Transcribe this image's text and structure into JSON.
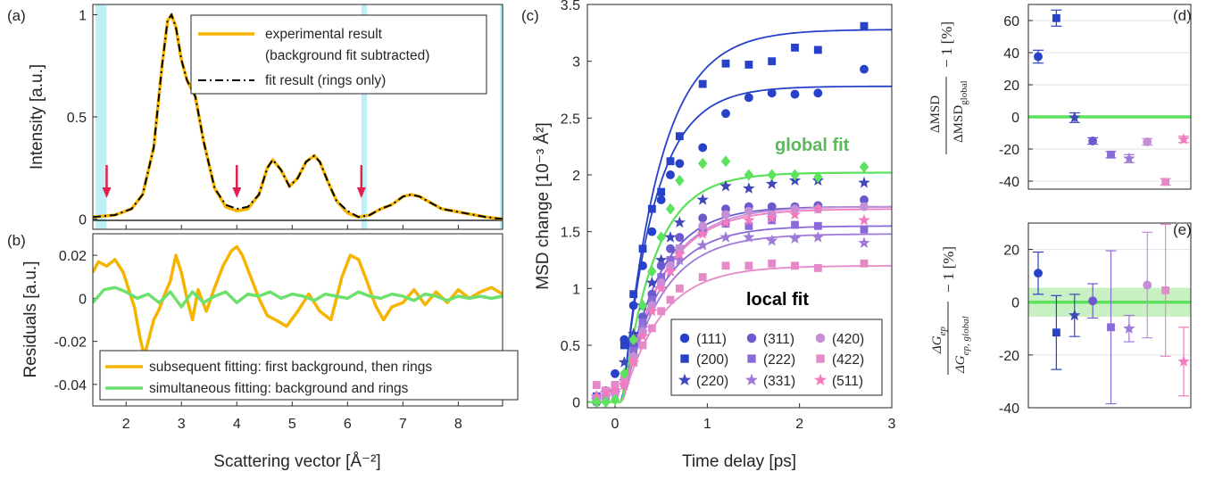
{
  "panels": {
    "a": "(a)",
    "b": "(b)",
    "c": "(c)",
    "d": "(d)",
    "e": "(e)"
  },
  "chart_data": [
    {
      "id": "a",
      "type": "line",
      "ylabel": "Intensity [a.u.]",
      "xlim": [
        1.4,
        8.8
      ],
      "ylim": [
        -0.05,
        1.05
      ],
      "yticks": [
        0,
        0.5,
        1
      ],
      "ytick_labels": [
        "0",
        "0.5",
        "1"
      ],
      "shaded_regions": [
        [
          1.45,
          1.65
        ],
        [
          6.25,
          6.35
        ],
        [
          8.75,
          8.8
        ]
      ],
      "arrows_at_x": [
        1.65,
        4.0,
        6.25
      ],
      "series": [
        {
          "name": "experimental result",
          "name_line2": "(background fit subtracted)",
          "color": "#f4b400",
          "x": [
            1.4,
            1.8,
            2.1,
            2.3,
            2.5,
            2.65,
            2.75,
            2.82,
            2.9,
            3.0,
            3.1,
            3.25,
            3.4,
            3.6,
            3.8,
            4.0,
            4.2,
            4.4,
            4.55,
            4.65,
            4.8,
            4.95,
            5.1,
            5.25,
            5.4,
            5.5,
            5.65,
            5.8,
            6.0,
            6.2,
            6.4,
            6.6,
            6.8,
            7.0,
            7.15,
            7.3,
            7.5,
            7.7,
            7.9,
            8.1,
            8.3,
            8.5,
            8.8
          ],
          "y": [
            0.01,
            0.02,
            0.05,
            0.12,
            0.35,
            0.75,
            0.97,
            1.0,
            0.94,
            0.78,
            0.68,
            0.6,
            0.38,
            0.15,
            0.06,
            0.04,
            0.05,
            0.12,
            0.25,
            0.29,
            0.24,
            0.16,
            0.2,
            0.28,
            0.31,
            0.28,
            0.18,
            0.09,
            0.03,
            0.01,
            0.02,
            0.05,
            0.07,
            0.11,
            0.12,
            0.11,
            0.08,
            0.05,
            0.04,
            0.03,
            0.02,
            0.01,
            0.0
          ]
        },
        {
          "name": "fit result (rings only)",
          "color": "#000000",
          "dash": true,
          "x": [
            1.4,
            1.8,
            2.1,
            2.3,
            2.5,
            2.65,
            2.75,
            2.82,
            2.9,
            3.0,
            3.1,
            3.25,
            3.4,
            3.6,
            3.8,
            4.0,
            4.2,
            4.4,
            4.55,
            4.65,
            4.8,
            4.95,
            5.1,
            5.25,
            5.4,
            5.5,
            5.65,
            5.8,
            6.0,
            6.2,
            6.4,
            6.6,
            6.8,
            7.0,
            7.15,
            7.3,
            7.5,
            7.7,
            7.9,
            8.1,
            8.3,
            8.5,
            8.8
          ],
          "y": [
            0.01,
            0.02,
            0.05,
            0.12,
            0.35,
            0.75,
            0.97,
            1.0,
            0.94,
            0.78,
            0.68,
            0.6,
            0.38,
            0.15,
            0.07,
            0.05,
            0.06,
            0.12,
            0.25,
            0.29,
            0.24,
            0.16,
            0.2,
            0.28,
            0.31,
            0.28,
            0.18,
            0.09,
            0.04,
            0.01,
            0.02,
            0.05,
            0.07,
            0.11,
            0.12,
            0.11,
            0.08,
            0.05,
            0.04,
            0.03,
            0.02,
            0.01,
            0.0
          ]
        }
      ]
    },
    {
      "id": "b",
      "type": "line",
      "xlabel": "Scattering vector [Å⁻²]",
      "ylabel": "Residuals [a.u.]",
      "xlim": [
        1.4,
        8.8
      ],
      "ylim": [
        -0.05,
        0.03
      ],
      "xticks": [
        2,
        3,
        4,
        5,
        6,
        7,
        8
      ],
      "yticks": [
        -0.04,
        -0.02,
        0,
        0.02
      ],
      "ytick_labels": [
        "-0.04",
        "-0.02",
        "0",
        "0.02"
      ],
      "series": [
        {
          "name": "subsequent fitting: first background, then rings",
          "color": "#f4b400",
          "x": [
            1.4,
            1.5,
            1.65,
            1.8,
            1.95,
            2.05,
            2.15,
            2.25,
            2.33,
            2.4,
            2.5,
            2.6,
            2.7,
            2.8,
            2.9,
            3.0,
            3.1,
            3.2,
            3.3,
            3.45,
            3.6,
            3.75,
            3.9,
            4.0,
            4.1,
            4.25,
            4.4,
            4.55,
            4.7,
            4.9,
            5.1,
            5.3,
            5.5,
            5.7,
            5.9,
            6.05,
            6.2,
            6.35,
            6.5,
            6.65,
            6.8,
            7.0,
            7.2,
            7.4,
            7.6,
            7.8,
            8.0,
            8.2,
            8.4,
            8.6,
            8.8
          ],
          "y": [
            0.012,
            0.017,
            0.015,
            0.018,
            0.012,
            0.004,
            -0.004,
            -0.018,
            -0.027,
            -0.02,
            -0.01,
            -0.005,
            0.002,
            0.008,
            0.02,
            0.012,
            0.0,
            -0.01,
            0.004,
            -0.006,
            0.005,
            0.015,
            0.022,
            0.024,
            0.02,
            0.01,
            0.0,
            -0.008,
            -0.01,
            -0.013,
            -0.006,
            0.002,
            -0.006,
            -0.01,
            0.01,
            0.02,
            0.018,
            0.008,
            -0.003,
            -0.01,
            -0.004,
            -0.002,
            0.004,
            -0.003,
            0.003,
            -0.002,
            0.004,
            0.0,
            0.003,
            0.005,
            0.002
          ]
        },
        {
          "name": "simultaneous fitting: background and rings",
          "color": "#6ee06e",
          "x": [
            1.4,
            1.6,
            1.8,
            2.0,
            2.2,
            2.4,
            2.6,
            2.8,
            3.0,
            3.2,
            3.4,
            3.6,
            3.8,
            4.0,
            4.2,
            4.4,
            4.6,
            4.8,
            5.0,
            5.2,
            5.4,
            5.6,
            5.8,
            6.0,
            6.2,
            6.4,
            6.6,
            6.8,
            7.0,
            7.2,
            7.4,
            7.6,
            7.8,
            8.0,
            8.2,
            8.4,
            8.6,
            8.8
          ],
          "y": [
            -0.002,
            0.004,
            0.005,
            0.003,
            0.0,
            0.002,
            -0.002,
            0.003,
            -0.004,
            0.003,
            -0.002,
            0.001,
            0.003,
            -0.002,
            0.002,
            0.001,
            0.003,
            0.0,
            0.002,
            0.001,
            -0.001,
            0.002,
            0.001,
            0.0,
            0.003,
            0.001,
            0.0,
            0.002,
            0.001,
            -0.001,
            0.002,
            0.001,
            -0.001,
            0.001,
            0.0,
            0.001,
            0.0,
            0.001
          ]
        }
      ]
    },
    {
      "id": "c",
      "type": "scatter",
      "xlabel": "Time delay [ps]",
      "ylabel": "MSD change [10⁻³ Å²]",
      "xlim": [
        -0.3,
        3
      ],
      "ylim": [
        -0.05,
        3.5
      ],
      "xticks": [
        0,
        1,
        2,
        3
      ],
      "yticks": [
        0,
        0.5,
        1,
        1.5,
        2,
        2.5,
        3,
        3.5
      ],
      "ytick_labels": [
        "0",
        "0.5",
        "1",
        "1.5",
        "2",
        "2.5",
        "3",
        "3.5"
      ],
      "annotations": [
        {
          "text": "global fit",
          "color": "#5cb85c"
        },
        {
          "text": "local fit",
          "color": "#000000"
        }
      ],
      "t_values": [
        -0.2,
        -0.1,
        0,
        0.1,
        0.2,
        0.3,
        0.4,
        0.5,
        0.6,
        0.7,
        0.95,
        1.2,
        1.45,
        1.7,
        1.95,
        2.2,
        2.7
      ],
      "series": [
        {
          "name": "(111)",
          "marker": "circle",
          "color": "#2742c8",
          "amp": 2.78,
          "tau": 0.35,
          "t0": 0.08,
          "values": [
            0.0,
            0.1,
            0.25,
            0.55,
            0.85,
            1.2,
            1.5,
            1.78,
            2.0,
            2.1,
            2.24,
            2.54,
            2.68,
            2.72,
            2.71,
            2.72,
            2.93
          ]
        },
        {
          "name": "(200)",
          "marker": "square",
          "color": "#2742c8",
          "amp": 3.28,
          "tau": 0.4,
          "t0": 0.08,
          "values": [
            0.05,
            0.1,
            0.15,
            0.5,
            0.95,
            1.35,
            1.7,
            1.85,
            2.12,
            2.34,
            2.8,
            2.98,
            2.97,
            3.0,
            3.12,
            3.1,
            3.31
          ]
        },
        {
          "name": "(220)",
          "marker": "star",
          "color": "#3f48b8",
          "amp": 2.02,
          "tau": 0.35,
          "t0": 0.08,
          "values": [
            0.05,
            0.08,
            0.1,
            0.35,
            0.6,
            0.85,
            1.05,
            1.25,
            1.45,
            1.58,
            1.78,
            1.9,
            1.88,
            1.92,
            1.95,
            1.95,
            1.93
          ]
        },
        {
          "name": "(311)",
          "marker": "circle",
          "color": "#6a5acd",
          "amp": 1.72,
          "tau": 0.38,
          "t0": 0.08,
          "values": [
            0.05,
            0.08,
            0.1,
            0.2,
            0.5,
            0.75,
            0.95,
            1.2,
            1.35,
            1.45,
            1.62,
            1.7,
            1.72,
            1.72,
            1.72,
            1.73,
            1.78
          ]
        },
        {
          "name": "(222)",
          "marker": "square",
          "color": "#8a6ad6",
          "amp": 1.55,
          "tau": 0.4,
          "t0": 0.08,
          "values": [
            0.02,
            0.05,
            0.1,
            0.2,
            0.45,
            0.7,
            0.9,
            1.1,
            1.25,
            1.35,
            1.5,
            1.57,
            1.55,
            1.6,
            1.56,
            1.55,
            1.52
          ]
        },
        {
          "name": "(331)",
          "marker": "star",
          "color": "#a07ad8",
          "amp": 1.48,
          "tau": 0.42,
          "t0": 0.08,
          "values": [
            0.02,
            0.05,
            0.08,
            0.18,
            0.4,
            0.65,
            0.85,
            1.0,
            1.15,
            1.25,
            1.38,
            1.45,
            1.45,
            1.42,
            1.44,
            1.45,
            1.4
          ]
        },
        {
          "name": "(420)",
          "marker": "circle",
          "color": "#c58fd8",
          "amp": 1.72,
          "tau": 0.42,
          "t0": 0.08,
          "values": [
            0.02,
            0.05,
            0.08,
            0.15,
            0.4,
            0.62,
            0.85,
            1.05,
            1.2,
            1.35,
            1.55,
            1.65,
            1.68,
            1.65,
            1.7,
            1.7,
            1.72
          ]
        },
        {
          "name": "(422)",
          "marker": "square",
          "color": "#e589c8",
          "amp": 1.2,
          "tau": 0.42,
          "t0": 0.08,
          "values": [
            0.15,
            0.1,
            0.15,
            0.2,
            0.35,
            0.5,
            0.65,
            0.8,
            0.9,
            1.0,
            1.1,
            1.2,
            1.2,
            1.22,
            1.2,
            1.18,
            1.22
          ]
        },
        {
          "name": "(511)",
          "marker": "star",
          "color": "#f27cbf",
          "amp": 1.7,
          "tau": 0.42,
          "t0": 0.08,
          "values": [
            0.05,
            0.08,
            0.1,
            0.15,
            0.35,
            0.58,
            0.8,
            1.0,
            1.15,
            1.3,
            1.48,
            1.58,
            1.6,
            1.62,
            1.65,
            1.7,
            1.6
          ]
        },
        {
          "name": "global",
          "marker": "diamond",
          "color": "#5ce25c",
          "amp": 2.02,
          "tau": 0.35,
          "t0": 0.08,
          "legend": false,
          "values": [
            0.0,
            0.0,
            0.02,
            0.25,
            0.55,
            0.85,
            1.15,
            1.45,
            1.7,
            1.95,
            2.1,
            2.12,
            2.0,
            2.0,
            2.0,
            1.98,
            2.07
          ]
        }
      ]
    },
    {
      "id": "d",
      "type": "scatter",
      "ylim": [
        -45,
        70
      ],
      "yticks": [
        -40,
        -20,
        0,
        20,
        40,
        60
      ],
      "ytick_labels": [
        "-40",
        "-20",
        "0",
        "20",
        "40",
        "60"
      ],
      "ylabel_parts": {
        "num": "ΔMSD",
        "den": "ΔMSD",
        "den_sub": "global",
        "tail": "− 1  [%]"
      },
      "reference_line": 0,
      "points": [
        {
          "label": "(111)",
          "marker": "circle",
          "color": "#2742c8",
          "value": 37.5,
          "err": 4
        },
        {
          "label": "(200)",
          "marker": "square",
          "color": "#2742c8",
          "value": 61.5,
          "err": 5
        },
        {
          "label": "(220)",
          "marker": "star",
          "color": "#3f48b8",
          "value": -0.5,
          "err": 3
        },
        {
          "label": "(311)",
          "marker": "circle",
          "color": "#6a5acd",
          "value": -15,
          "err": 2
        },
        {
          "label": "(222)",
          "marker": "square",
          "color": "#8a6ad6",
          "value": -23.5,
          "err": 2
        },
        {
          "label": "(331)",
          "marker": "star",
          "color": "#a07ad8",
          "value": -26,
          "err": 2.5
        },
        {
          "label": "(420)",
          "marker": "circle",
          "color": "#c58fd8",
          "value": -15.5,
          "err": 2
        },
        {
          "label": "(422)",
          "marker": "square",
          "color": "#e589c8",
          "value": -40.5,
          "err": 2
        },
        {
          "label": "(511)",
          "marker": "star",
          "color": "#f27cbf",
          "value": -14,
          "err": 2
        }
      ]
    },
    {
      "id": "e",
      "type": "scatter",
      "ylim": [
        -40,
        30
      ],
      "yticks": [
        -40,
        -20,
        0,
        20
      ],
      "ytick_labels": [
        "-40",
        "-20",
        "0",
        "20"
      ],
      "ylabel_parts": {
        "num": "ΔG",
        "num_sub": "ep",
        "den": "ΔG",
        "den_sub": "ep, global",
        "tail": "− 1  [%]"
      },
      "reference_line": 0,
      "reference_band": [
        -5.5,
        5.5
      ],
      "points": [
        {
          "label": "(111)",
          "marker": "circle",
          "color": "#2742c8",
          "value": 11,
          "err": 8
        },
        {
          "label": "(200)",
          "marker": "square",
          "color": "#2742c8",
          "value": -11.5,
          "err": 14
        },
        {
          "label": "(220)",
          "marker": "star",
          "color": "#3f48b8",
          "value": -5,
          "err": 8
        },
        {
          "label": "(311)",
          "marker": "circle",
          "color": "#6a5acd",
          "value": 0.5,
          "err": 6.5
        },
        {
          "label": "(222)",
          "marker": "square",
          "color": "#8a6ad6",
          "value": -9.5,
          "err": 29
        },
        {
          "label": "(331)",
          "marker": "star",
          "color": "#a07ad8",
          "value": -10,
          "err": 5
        },
        {
          "label": "(420)",
          "marker": "circle",
          "color": "#c58fd8",
          "value": 6.5,
          "err": 20
        },
        {
          "label": "(422)",
          "marker": "square",
          "color": "#e589c8",
          "value": 4.5,
          "err": 25
        },
        {
          "label": "(511)",
          "marker": "star",
          "color": "#f27cbf",
          "value": -22.5,
          "err": 13
        }
      ]
    }
  ]
}
